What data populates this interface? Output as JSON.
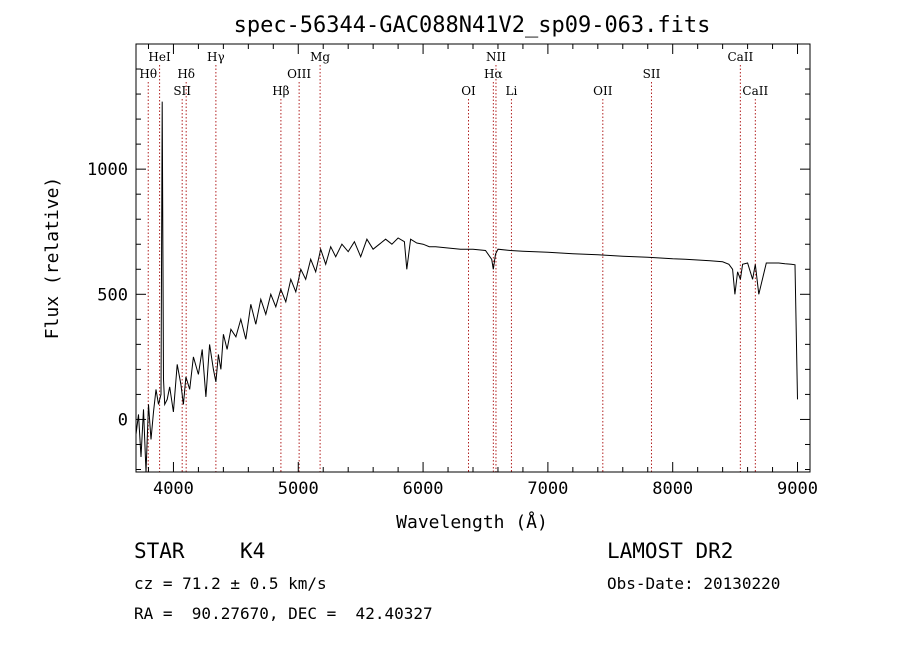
{
  "chart_data": {
    "type": "line",
    "title": "spec-56344-GAC088N41V2_sp09-063.fits",
    "xlabel": "Wavelength (Å)",
    "ylabel": "Flux (relative)",
    "xlim": [
      3700,
      9100
    ],
    "ylim": [
      -210,
      1500
    ],
    "x_ticks": [
      4000,
      5000,
      6000,
      7000,
      8000,
      9000
    ],
    "y_ticks": [
      0,
      500,
      1000
    ],
    "colors": {
      "spectrum": "#000000",
      "line_markers": "#b22222",
      "frame": "#000000"
    },
    "spectrum": {
      "x": [
        3700,
        3720,
        3740,
        3760,
        3780,
        3800,
        3820,
        3840,
        3860,
        3880,
        3900,
        3910,
        3920,
        3930,
        3950,
        3970,
        4000,
        4030,
        4060,
        4080,
        4100,
        4130,
        4160,
        4200,
        4230,
        4260,
        4290,
        4320,
        4340,
        4360,
        4380,
        4400,
        4430,
        4460,
        4500,
        4540,
        4580,
        4620,
        4660,
        4700,
        4740,
        4780,
        4820,
        4860,
        4900,
        4940,
        4980,
        5020,
        5060,
        5100,
        5140,
        5180,
        5220,
        5260,
        5300,
        5350,
        5400,
        5450,
        5500,
        5550,
        5600,
        5650,
        5700,
        5750,
        5800,
        5850,
        5870,
        5900,
        5950,
        6000,
        6050,
        6100,
        6200,
        6300,
        6400,
        6500,
        6550,
        6563,
        6580,
        6600,
        6700,
        6800,
        6900,
        7000,
        7100,
        7200,
        7300,
        7400,
        7500,
        7600,
        7700,
        7800,
        7900,
        8000,
        8100,
        8200,
        8300,
        8400,
        8450,
        8480,
        8498,
        8520,
        8542,
        8560,
        8600,
        8640,
        8662,
        8690,
        8750,
        8800,
        8850,
        8900,
        8950,
        8980,
        9000
      ],
      "y": [
        -60,
        20,
        -150,
        40,
        -210,
        60,
        -80,
        30,
        120,
        60,
        100,
        1270,
        160,
        60,
        80,
        130,
        30,
        220,
        140,
        60,
        170,
        120,
        250,
        180,
        280,
        90,
        300,
        200,
        150,
        260,
        200,
        340,
        280,
        360,
        330,
        400,
        320,
        460,
        380,
        480,
        420,
        500,
        450,
        520,
        470,
        560,
        510,
        600,
        560,
        640,
        590,
        680,
        620,
        690,
        650,
        700,
        670,
        710,
        650,
        720,
        680,
        700,
        720,
        700,
        725,
        710,
        600,
        720,
        705,
        700,
        690,
        690,
        685,
        680,
        680,
        675,
        640,
        600,
        660,
        680,
        675,
        672,
        670,
        668,
        665,
        662,
        660,
        658,
        655,
        652,
        650,
        648,
        645,
        642,
        640,
        637,
        634,
        630,
        620,
        600,
        500,
        590,
        560,
        620,
        625,
        560,
        620,
        500,
        625,
        625,
        625,
        622,
        620,
        618,
        80
      ]
    },
    "lines_top": [
      {
        "label": "HeI",
        "x": 3889
      },
      {
        "label": "Hγ",
        "x": 4340
      },
      {
        "label": "Mg",
        "x": 5175
      },
      {
        "label": "NII",
        "x": 6584
      },
      {
        "label": "CaII",
        "x": 8542
      }
    ],
    "lines_mid": [
      {
        "label": "Hθ",
        "x": 3798
      },
      {
        "label": "Hδ",
        "x": 4102
      },
      {
        "label": "OIII",
        "x": 5007
      },
      {
        "label": "Hα",
        "x": 6563
      },
      {
        "label": "SII",
        "x": 7830
      }
    ],
    "lines_low": [
      {
        "label": "SII",
        "x": 4070
      },
      {
        "label": "Hβ",
        "x": 4861
      },
      {
        "label": "OI",
        "x": 6364
      },
      {
        "label": "Li",
        "x": 6708
      },
      {
        "label": "OII",
        "x": 7440
      },
      {
        "label": "CaII",
        "x": 8662
      }
    ]
  },
  "info": {
    "object_class": "STAR",
    "subclass": "K4",
    "redshift_text": "cz = 71.2 ± 0.5 km/s",
    "coords_text": "RA =  90.27670, DEC =  42.40327",
    "survey": "LAMOST DR2",
    "obs_date": "Obs-Date: 20130220"
  }
}
